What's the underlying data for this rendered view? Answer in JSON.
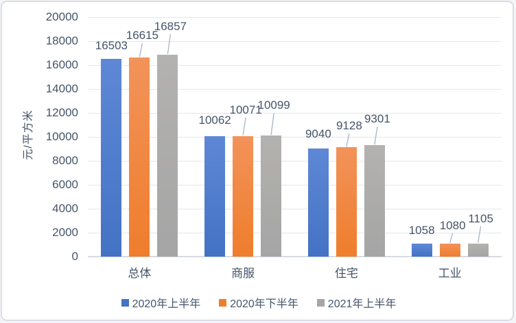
{
  "chart_data": {
    "type": "bar",
    "title": "",
    "xlabel": "",
    "ylabel": "元/平方米",
    "categories": [
      "总体",
      "商服",
      "住宅",
      "工业"
    ],
    "series": [
      {
        "name": "2020年上半年",
        "color": "#4472c4",
        "color_light": "#5e88d6",
        "values": [
          16503,
          10062,
          9040,
          1058
        ]
      },
      {
        "name": "2020年下半年",
        "color": "#ef7d2c",
        "color_light": "#f2935a",
        "values": [
          16615,
          10071,
          9128,
          1080
        ]
      },
      {
        "name": "2021年上半年",
        "color": "#a5a5a5",
        "color_light": "#b3b2b0",
        "values": [
          16857,
          10099,
          9301,
          1105
        ]
      }
    ],
    "ylim": [
      0,
      20000
    ],
    "y_tick_interval": 2000,
    "grid": true,
    "data_labels": true,
    "legend_position": "bottom"
  },
  "colors": {
    "text": "#44546a",
    "gridline": "#e2e6ec",
    "axis_line": "#d6dbe3",
    "leader_line": "#a9b3c4",
    "card_border": "#d9dee6",
    "background": "#ffffff"
  }
}
